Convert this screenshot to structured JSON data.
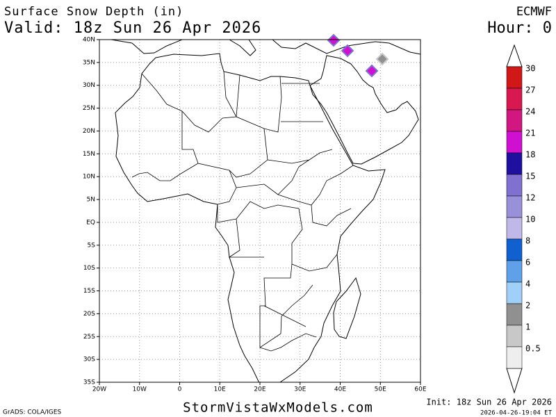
{
  "header": {
    "title": "Surface Snow Depth (in)",
    "valid": "Valid: 18z Sun 26 Apr 2026",
    "model": "ECMWF",
    "hour": "Hour: 0"
  },
  "map": {
    "lat_labels": [
      "40N",
      "35N",
      "30N",
      "25N",
      "20N",
      "15N",
      "10N",
      "5N",
      "EQ",
      "5S",
      "10S",
      "15S",
      "20S",
      "25S",
      "30S",
      "35S"
    ],
    "lon_labels": [
      "20W",
      "10W",
      "0",
      "10E",
      "20E",
      "30E",
      "40E",
      "50E",
      "60E"
    ]
  },
  "colorbar": {
    "levels": [
      {
        "label": "30",
        "color": "#d01818"
      },
      {
        "label": "27",
        "color": "#d81850"
      },
      {
        "label": "24",
        "color": "#d01880"
      },
      {
        "label": "21",
        "color": "#d010d0"
      },
      {
        "label": "18",
        "color": "#2010a0"
      },
      {
        "label": "15",
        "color": "#8070d0"
      },
      {
        "label": "12",
        "color": "#9890d8"
      },
      {
        "label": "10",
        "color": "#c0b8e8"
      },
      {
        "label": "8",
        "color": "#1060d0"
      },
      {
        "label": "6",
        "color": "#60a0e8"
      },
      {
        "label": "4",
        "color": "#a0d0f8"
      },
      {
        "label": "2",
        "color": "#909090"
      },
      {
        "label": "1",
        "color": "#c8c8c8"
      },
      {
        "label": "0.5",
        "color": "#eeeeee"
      }
    ]
  },
  "footer": {
    "credit": "GrADS: COLA/IGES",
    "site": "StormVistaWxModels.com",
    "init": "Init: 18z Sun 26 Apr 2026",
    "stamp": "2026-04-26-19:04 ET"
  }
}
